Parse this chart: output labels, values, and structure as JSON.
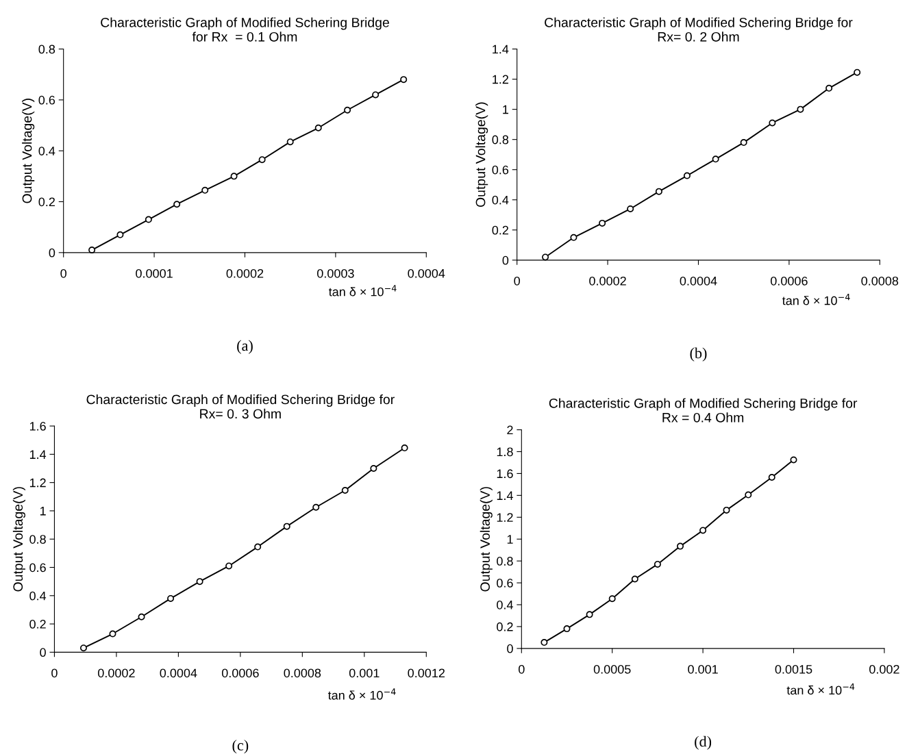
{
  "chart_data": [
    {
      "type": "line",
      "title": "Characteristic Graph of Modified Schering Bridge\nfor Rx  = 0.1 Ohm",
      "xlabel": "tan δ × 10$^{−4}$",
      "ylabel": "Output Voltage(V)",
      "marker": "circle",
      "line_style": "solid",
      "grid": false,
      "x": [
        3.13e-05,
        6.25e-05,
        9.38e-05,
        0.000125,
        0.000156,
        0.000188,
        0.000219,
        0.00025,
        0.000281,
        0.000313,
        0.000344,
        0.000375
      ],
      "series": [
        {
          "color": "#000000",
          "values": [
            0.01,
            0.07,
            0.13,
            0.19,
            0.245,
            0.3,
            0.365,
            0.435,
            0.49,
            0.56,
            0.62,
            0.68
          ]
        }
      ],
      "xlim": [
        0,
        0.0004
      ],
      "xticks": [
        0,
        0.0001,
        0.0002,
        0.0003,
        0.0004
      ],
      "ylim": [
        0,
        0.8
      ],
      "yticks": [
        0,
        0.2,
        0.4,
        0.6,
        0.8
      ],
      "annotations": [
        "(a)"
      ]
    },
    {
      "type": "line",
      "title": "Characteristic Graph of Modified Schering Bridge for\nRx= 0. 2 Ohm",
      "xlabel": "tan δ × 10$^{−4}$",
      "ylabel": "Output Voltage(V)",
      "marker": "circle",
      "line_style": "solid",
      "grid": false,
      "x": [
        6.25e-05,
        0.000125,
        0.000188,
        0.00025,
        0.000313,
        0.000375,
        0.000438,
        0.0005,
        0.000563,
        0.000625,
        0.000688,
        0.00075
      ],
      "series": [
        {
          "color": "#000000",
          "values": [
            0.02,
            0.15,
            0.245,
            0.34,
            0.455,
            0.56,
            0.67,
            0.78,
            0.91,
            1.0,
            1.14,
            1.245
          ]
        }
      ],
      "xlim": [
        0,
        0.0008
      ],
      "xticks": [
        0,
        0.0002,
        0.0004,
        0.0006,
        0.0008
      ],
      "ylim": [
        0,
        1.4
      ],
      "yticks": [
        0,
        0.2,
        0.4,
        0.6,
        0.8,
        1,
        1.2,
        1.4
      ],
      "annotations": [
        "(b)"
      ]
    },
    {
      "type": "line",
      "title": "Characteristic Graph of Modified Schering Bridge for\nRx= 0. 3 Ohm",
      "xlabel": "tan δ × 10$^{−4}$",
      "ylabel": "Output Voltage(V)",
      "marker": "circle",
      "line_style": "solid",
      "grid": false,
      "x": [
        9.4e-05,
        0.000188,
        0.000281,
        0.000375,
        0.000469,
        0.000563,
        0.000656,
        0.00075,
        0.000844,
        0.000938,
        0.00103,
        0.00113
      ],
      "series": [
        {
          "color": "#000000",
          "values": [
            0.03,
            0.13,
            0.25,
            0.38,
            0.5,
            0.61,
            0.745,
            0.89,
            1.025,
            1.145,
            1.3,
            1.445
          ]
        }
      ],
      "xlim": [
        0,
        0.0012
      ],
      "xticks": [
        0,
        0.0002,
        0.0004,
        0.0006,
        0.0008,
        0.001,
        0.0012
      ],
      "ylim": [
        0,
        1.6
      ],
      "yticks": [
        0,
        0.2,
        0.4,
        0.6,
        0.8,
        1,
        1.2,
        1.4,
        1.6
      ],
      "annotations": [
        "(c)"
      ]
    },
    {
      "type": "line",
      "title": "Characteristic Graph of Modified Schering Bridge for\nRx = 0.4 Ohm",
      "xlabel": "tan δ × 10$^{−4}$",
      "ylabel": "Output Voltage(V)",
      "marker": "circle",
      "line_style": "solid",
      "grid": false,
      "x": [
        0.000125,
        0.00025,
        0.000375,
        0.0005,
        0.000625,
        0.00075,
        0.000875,
        0.001,
        0.00113,
        0.00125,
        0.00138,
        0.0015
      ],
      "series": [
        {
          "color": "#000000",
          "values": [
            0.055,
            0.18,
            0.31,
            0.455,
            0.635,
            0.77,
            0.935,
            1.08,
            1.265,
            1.405,
            1.565,
            1.725
          ]
        }
      ],
      "xlim": [
        0,
        0.002
      ],
      "xticks": [
        0,
        0.0005,
        0.001,
        0.0015,
        0.002
      ],
      "ylim": [
        0,
        2
      ],
      "yticks": [
        0,
        0.2,
        0.4,
        0.6,
        0.8,
        1,
        1.2,
        1.4,
        1.6,
        1.8,
        2
      ],
      "annotations": [
        "(d)"
      ]
    }
  ]
}
